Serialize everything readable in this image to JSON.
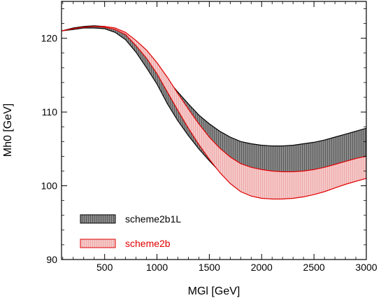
{
  "chart_data": {
    "type": "area",
    "title": "",
    "xlabel": "MGl [GeV]",
    "ylabel": "Mh0 [GeV]",
    "xlim": [
      88,
      3000
    ],
    "ylim": [
      90,
      125
    ],
    "xticks": [
      500,
      1000,
      1500,
      2000,
      2500,
      3000
    ],
    "yticks": [
      90,
      100,
      110,
      120
    ],
    "legend_position": "lower-left",
    "grid": false,
    "series": [
      {
        "name": "scheme2b1L",
        "color": "#000000",
        "fill": "#8a8a8a",
        "x": [
          88,
          200,
          300,
          400,
          500,
          600,
          700,
          800,
          900,
          1000,
          1100,
          1200,
          1300,
          1400,
          1500,
          1600,
          1700,
          1800,
          1900,
          2000,
          2100,
          2200,
          2300,
          2400,
          2500,
          2600,
          2700,
          2800,
          2900,
          3000
        ],
        "upper": [
          121.0,
          121.4,
          121.6,
          121.7,
          121.6,
          121.3,
          120.5,
          119.2,
          117.8,
          116.2,
          114.4,
          112.7,
          111.1,
          109.6,
          108.4,
          107.4,
          106.6,
          106.0,
          105.7,
          105.5,
          105.4,
          105.4,
          105.5,
          105.7,
          105.9,
          106.2,
          106.6,
          107.0,
          107.4,
          107.8
        ],
        "lower": [
          121.0,
          121.2,
          121.4,
          121.4,
          121.3,
          120.8,
          119.8,
          118.1,
          116.0,
          113.8,
          111.1,
          108.8,
          106.8,
          105.0,
          103.4,
          101.9,
          100.7,
          99.7,
          99.0,
          98.7,
          98.6,
          98.6,
          98.9,
          99.3,
          99.8,
          100.4,
          101.0,
          101.7,
          102.4,
          103.0
        ]
      },
      {
        "name": "scheme2b",
        "color": "#e00000",
        "fill": "#f3b6b6",
        "x": [
          88,
          200,
          300,
          400,
          500,
          600,
          700,
          800,
          900,
          1000,
          1100,
          1200,
          1300,
          1400,
          1500,
          1600,
          1700,
          1800,
          1900,
          2000,
          2100,
          2200,
          2300,
          2400,
          2500,
          2600,
          2700,
          2800,
          2900,
          3000
        ],
        "upper": [
          121.0,
          121.3,
          121.5,
          121.6,
          121.6,
          121.4,
          120.8,
          119.7,
          118.4,
          116.7,
          114.7,
          112.5,
          110.4,
          108.4,
          106.6,
          105.1,
          103.9,
          103.0,
          102.5,
          102.2,
          102.0,
          101.9,
          101.9,
          102.0,
          102.2,
          102.5,
          102.9,
          103.3,
          103.7,
          104.0
        ],
        "lower": [
          121.0,
          121.3,
          121.5,
          121.6,
          121.5,
          121.2,
          120.5,
          119.0,
          117.3,
          115.2,
          112.7,
          110.2,
          107.8,
          105.6,
          103.6,
          101.8,
          100.3,
          99.2,
          98.6,
          98.3,
          98.2,
          98.2,
          98.3,
          98.5,
          98.8,
          99.2,
          99.7,
          100.2,
          100.6,
          101.0
        ]
      }
    ]
  }
}
